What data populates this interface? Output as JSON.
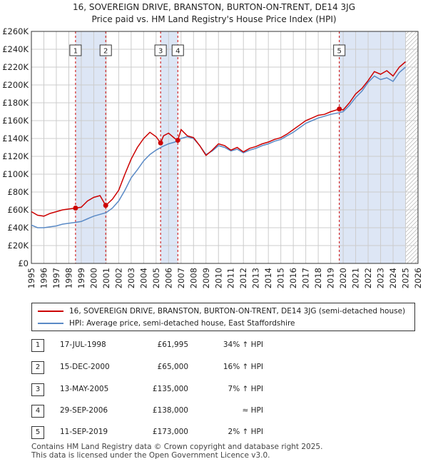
{
  "title_line1": "16, SOVEREIGN DRIVE, BRANSTON, BURTON-ON-TRENT, DE14 3JG",
  "title_line2": "Price paid vs. HM Land Registry's House Price Index (HPI)",
  "colors": {
    "property": "#cc0000",
    "hpi": "#5a8ac6",
    "shade": "#dde6f5",
    "grid": "#cccccc"
  },
  "chart_data": {
    "type": "line",
    "xlim": [
      1995,
      2026
    ],
    "ylim": [
      0,
      260000
    ],
    "y_ticks": [
      0,
      20000,
      40000,
      60000,
      80000,
      100000,
      120000,
      140000,
      160000,
      180000,
      200000,
      220000,
      240000,
      260000
    ],
    "y_tick_labels": [
      "£0",
      "£20K",
      "£40K",
      "£60K",
      "£80K",
      "£100K",
      "£120K",
      "£140K",
      "£160K",
      "£180K",
      "£200K",
      "£220K",
      "£240K",
      "£260K"
    ],
    "x_ticks": [
      1995,
      1996,
      1997,
      1998,
      1999,
      2000,
      2001,
      2002,
      2003,
      2004,
      2005,
      2006,
      2007,
      2008,
      2009,
      2010,
      2011,
      2012,
      2013,
      2014,
      2015,
      2016,
      2017,
      2018,
      2019,
      2020,
      2021,
      2022,
      2023,
      2024,
      2025,
      2026
    ],
    "grid": true,
    "shaded_periods": [
      [
        1998.54,
        2000.96
      ],
      [
        2005.36,
        2006.74
      ],
      [
        2019.69,
        2025.0
      ]
    ],
    "hatched_from": 2025.0,
    "series": [
      {
        "name": "16, SOVEREIGN DRIVE, BRANSTON, BURTON-ON-TRENT, DE14 3JG (semi-detached house)",
        "color": "#cc0000",
        "x": [
          1995.0,
          1995.5,
          1996.0,
          1996.5,
          1997.0,
          1997.5,
          1998.0,
          1998.54,
          1999.0,
          1999.5,
          2000.0,
          2000.5,
          2000.96,
          2001.5,
          2002.0,
          2002.5,
          2003.0,
          2003.5,
          2004.0,
          2004.5,
          2005.0,
          2005.36,
          2005.6,
          2006.0,
          2006.5,
          2006.74,
          2007.0,
          2007.5,
          2008.0,
          2008.5,
          2009.0,
          2009.5,
          2010.0,
          2010.5,
          2011.0,
          2011.5,
          2012.0,
          2012.5,
          2013.0,
          2013.5,
          2014.0,
          2014.5,
          2015.0,
          2015.5,
          2016.0,
          2016.5,
          2017.0,
          2017.5,
          2018.0,
          2018.5,
          2019.0,
          2019.69,
          2020.0,
          2020.5,
          2021.0,
          2021.5,
          2022.0,
          2022.5,
          2023.0,
          2023.5,
          2024.0,
          2024.5,
          2025.0
        ],
        "y": [
          58000,
          54000,
          53000,
          56000,
          58000,
          60000,
          61000,
          61995,
          63000,
          70000,
          74000,
          76000,
          65000,
          72000,
          82000,
          100000,
          117000,
          130000,
          140000,
          147000,
          142000,
          135000,
          143000,
          146000,
          140000,
          138000,
          150000,
          143000,
          141000,
          132000,
          121000,
          127000,
          134000,
          132000,
          127000,
          130000,
          125000,
          129000,
          131000,
          134000,
          136000,
          139000,
          141000,
          145000,
          150000,
          155000,
          160000,
          163000,
          166000,
          167000,
          170000,
          173000,
          172000,
          180000,
          190000,
          196000,
          205000,
          215000,
          212000,
          216000,
          210000,
          220000,
          226000
        ]
      },
      {
        "name": "HPI: Average price, semi-detached house, East Staffordshire",
        "color": "#5a8ac6",
        "x": [
          1995.0,
          1995.5,
          1996.0,
          1996.5,
          1997.0,
          1997.5,
          1998.0,
          1998.54,
          1999.0,
          1999.5,
          2000.0,
          2000.5,
          2001.0,
          2001.5,
          2002.0,
          2002.5,
          2003.0,
          2003.5,
          2004.0,
          2004.5,
          2005.0,
          2005.5,
          2006.0,
          2006.5,
          2006.74,
          2007.0,
          2007.5,
          2008.0,
          2008.5,
          2009.0,
          2009.5,
          2010.0,
          2010.5,
          2011.0,
          2011.5,
          2012.0,
          2012.5,
          2013.0,
          2013.5,
          2014.0,
          2014.5,
          2015.0,
          2015.5,
          2016.0,
          2016.5,
          2017.0,
          2017.5,
          2018.0,
          2018.5,
          2019.0,
          2019.69,
          2020.0,
          2020.5,
          2021.0,
          2021.5,
          2022.0,
          2022.5,
          2023.0,
          2023.5,
          2024.0,
          2024.5,
          2025.0
        ],
        "y": [
          43000,
          40000,
          40000,
          41000,
          42000,
          44000,
          45000,
          46000,
          47000,
          50000,
          53000,
          55000,
          57000,
          62000,
          70000,
          82000,
          96000,
          105000,
          115000,
          122000,
          127000,
          131000,
          134000,
          136000,
          138000,
          140000,
          142000,
          140000,
          132000,
          122000,
          126000,
          132000,
          130000,
          126000,
          128000,
          124000,
          127000,
          129000,
          132000,
          134000,
          137000,
          139000,
          143000,
          147000,
          152000,
          157000,
          160000,
          163000,
          165000,
          167000,
          169000,
          170000,
          177000,
          186000,
          193000,
          203000,
          210000,
          206000,
          208000,
          204000,
          214000,
          220000
        ]
      }
    ],
    "sale_markers": [
      {
        "label": "1",
        "x": 1998.54,
        "y": 61995
      },
      {
        "label": "2",
        "x": 2000.96,
        "y": 65000
      },
      {
        "label": "3",
        "x": 2005.36,
        "y": 135000
      },
      {
        "label": "4",
        "x": 2006.74,
        "y": 138000
      },
      {
        "label": "5",
        "x": 2019.69,
        "y": 173000
      }
    ]
  },
  "legend": {
    "property_label": "16, SOVEREIGN DRIVE, BRANSTON, BURTON-ON-TRENT, DE14 3JG (semi-detached house)",
    "hpi_label": "HPI: Average price, semi-detached house, East Staffordshire"
  },
  "transactions": [
    {
      "num": "1",
      "date": "17-JUL-1998",
      "price": "£61,995",
      "hpi": "34% ↑ HPI"
    },
    {
      "num": "2",
      "date": "15-DEC-2000",
      "price": "£65,000",
      "hpi": "16% ↑ HPI"
    },
    {
      "num": "3",
      "date": "13-MAY-2005",
      "price": "£135,000",
      "hpi": "7% ↑ HPI"
    },
    {
      "num": "4",
      "date": "29-SEP-2006",
      "price": "£138,000",
      "hpi": "≈ HPI"
    },
    {
      "num": "5",
      "date": "11-SEP-2019",
      "price": "£173,000",
      "hpi": "2% ↑ HPI"
    }
  ],
  "footer_line1": "Contains HM Land Registry data © Crown copyright and database right 2025.",
  "footer_line2": "This data is licensed under the Open Government Licence v3.0."
}
